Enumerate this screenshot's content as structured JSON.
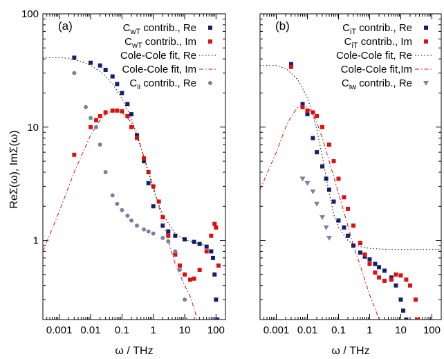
{
  "figure": {
    "ylabel": "ReΣ(ω), ImΣ(ω)",
    "colors": {
      "navy": "#14206e",
      "red": "#dd1111",
      "steel": "#7583a1",
      "fit": "#000000",
      "fitIm": "#cc1111"
    }
  },
  "chart_data": [
    {
      "type": "scatter",
      "panel_label": "(a)",
      "xlabel": "ω / THz",
      "ylabel": "ReΣ(ω), ImΣ(ω)",
      "xscale": "log",
      "yscale": "log",
      "xlim": [
        0.0003,
        200
      ],
      "ylim": [
        0.2,
        100
      ],
      "grid": false,
      "legend_position": "top-right",
      "xticks": [
        {
          "v": 0.001,
          "label": "0.001"
        },
        {
          "v": 0.01,
          "label": "0.01"
        },
        {
          "v": 0.1,
          "label": "0.1"
        },
        {
          "v": 1,
          "label": "1"
        },
        {
          "v": 10,
          "label": "10"
        },
        {
          "v": 100,
          "label": "100"
        }
      ],
      "yticks": [
        {
          "v": 1,
          "label": "1"
        },
        {
          "v": 10,
          "label": "10"
        },
        {
          "v": 100,
          "label": "100"
        }
      ],
      "legend": [
        {
          "base": "C",
          "sub": "wT",
          "rest": " contrib., Re",
          "marker": "square",
          "color": "#14206e"
        },
        {
          "base": "C",
          "sub": "wT",
          "rest": " contrib., Im",
          "marker": "square",
          "color": "#dd1111"
        },
        {
          "base": "Cole-Cole fit, Re",
          "sub": "",
          "rest": "",
          "marker": "dotted",
          "color": "#000000"
        },
        {
          "base": "Cole-Cole fit, Im",
          "sub": "",
          "rest": "",
          "marker": "dashdot",
          "color": "#cc1111"
        },
        {
          "base": "C",
          "sub": "ii",
          "rest": " contrib., Re",
          "marker": "circle",
          "color": "#7583a1"
        }
      ],
      "series": [
        {
          "name": "CwT contrib., Re",
          "marker": "square",
          "color": "#14206e",
          "x": [
            0.003,
            0.01,
            0.02,
            0.03,
            0.05,
            0.07,
            0.1,
            0.15,
            0.2,
            0.3,
            0.5,
            0.7,
            1,
            2,
            3,
            5,
            10,
            20,
            30,
            50,
            70,
            80,
            90,
            100,
            110
          ],
          "y": [
            41,
            37,
            35,
            32,
            28,
            24,
            20,
            16,
            13,
            8.5,
            5,
            3.2,
            2.0,
            1.35,
            1.2,
            1.1,
            1.02,
            0.97,
            0.93,
            0.88,
            0.8,
            0.7,
            0.5,
            0.3,
            0.2
          ]
        },
        {
          "name": "CwT contrib., Im",
          "marker": "square",
          "color": "#dd1111",
          "x": [
            0.003,
            0.01,
            0.015,
            0.02,
            0.03,
            0.05,
            0.07,
            0.1,
            0.15,
            0.2,
            0.3,
            0.5,
            0.7,
            1,
            1.5,
            2,
            3,
            5,
            7,
            10,
            15,
            20,
            30,
            50,
            70,
            90,
            100,
            120
          ],
          "y": [
            5.7,
            10,
            11.5,
            12.5,
            13.5,
            14,
            14,
            13.8,
            12.5,
            10,
            8,
            5.3,
            4,
            3,
            2.2,
            1.6,
            1.1,
            0.75,
            0.6,
            0.5,
            0.45,
            0.46,
            0.55,
            0.8,
            1.1,
            1.4,
            1.3,
            0.6
          ]
        },
        {
          "name": "Cole-Cole fit, Re",
          "marker": "dotted",
          "color": "#000000",
          "x": [
            0.0003,
            0.001,
            0.002,
            0.005,
            0.01,
            0.02,
            0.03,
            0.05,
            0.07,
            0.1,
            0.2,
            0.3,
            0.5,
            1,
            2,
            5,
            10,
            20,
            30,
            50
          ],
          "y": [
            41,
            41,
            40.5,
            38,
            35,
            31,
            28,
            24,
            21,
            18,
            12,
            8.5,
            5.4,
            2.8,
            1.7,
            1.15,
            1.02,
            0.96,
            0.93,
            0.9
          ]
        },
        {
          "name": "Cole-Cole fit, Im",
          "marker": "dashdot",
          "color": "#cc1111",
          "x": [
            0.0003,
            0.001,
            0.003,
            0.01,
            0.02,
            0.03,
            0.05,
            0.07,
            0.1,
            0.2,
            0.3,
            0.5,
            1,
            2,
            3,
            5,
            10,
            15,
            20,
            25
          ],
          "y": [
            0.8,
            1.8,
            4.0,
            8.5,
            11.5,
            13,
            14,
            14,
            13.5,
            11,
            8.8,
            5.5,
            3.0,
            1.5,
            1.0,
            0.62,
            0.4,
            0.32,
            0.25,
            0.2
          ]
        },
        {
          "name": "Cii contrib., Re",
          "marker": "circle",
          "color": "#7583a1",
          "x": [
            0.003,
            0.007,
            0.01,
            0.015,
            0.02,
            0.03,
            0.05,
            0.07,
            0.1,
            0.15,
            0.2,
            0.3,
            0.5,
            0.7,
            1,
            2,
            3,
            5,
            7,
            10,
            11
          ],
          "y": [
            30,
            15,
            12,
            10,
            7,
            4,
            2.5,
            2.1,
            1.85,
            1.65,
            1.5,
            1.35,
            1.25,
            1.2,
            1.15,
            1.05,
            0.98,
            0.8,
            0.55,
            0.3,
            0.2
          ]
        }
      ]
    },
    {
      "type": "scatter",
      "panel_label": "(b)",
      "xlabel": "ω / THz",
      "xscale": "log",
      "yscale": "log",
      "xlim": [
        0.0003,
        200
      ],
      "ylim": [
        0.2,
        100
      ],
      "grid": false,
      "legend_position": "top-right",
      "xticks": [
        {
          "v": 0.001,
          "label": "0.001"
        },
        {
          "v": 0.01,
          "label": "0.01"
        },
        {
          "v": 0.1,
          "label": "0.1"
        },
        {
          "v": 1,
          "label": "1"
        },
        {
          "v": 10,
          "label": "10"
        },
        {
          "v": 100,
          "label": "100"
        }
      ],
      "legend": [
        {
          "base": "C",
          "sub": "iT",
          "rest": " contrib., Re",
          "marker": "square",
          "color": "#14206e"
        },
        {
          "base": "C",
          "sub": "iT",
          "rest": " contrib., Im",
          "marker": "square",
          "color": "#dd1111"
        },
        {
          "base": "Cole-Cole fit, Re",
          "sub": "",
          "rest": "",
          "marker": "dotted",
          "color": "#000000"
        },
        {
          "base": "Cole-Cole fit,Im",
          "sub": "",
          "rest": "",
          "marker": "dashdot",
          "color": "#cc1111"
        },
        {
          "base": "C",
          "sub": "iw",
          "rest": " contrib., Re",
          "marker": "triangle",
          "color": "#7583a1"
        }
      ],
      "series": [
        {
          "name": "CiT contrib., Re",
          "marker": "square",
          "color": "#14206e",
          "x": [
            0.003,
            0.007,
            0.01,
            0.015,
            0.02,
            0.03,
            0.04,
            0.05,
            0.07,
            0.1,
            0.15,
            0.2,
            0.3,
            0.5,
            0.7,
            1,
            1.5,
            2,
            3,
            5,
            7,
            10,
            12,
            15
          ],
          "y": [
            36,
            16,
            13,
            8,
            6,
            4.5,
            3.5,
            2.8,
            2.2,
            1.5,
            1.3,
            1.1,
            0.9,
            0.78,
            0.72,
            0.68,
            0.62,
            0.58,
            0.54,
            0.47,
            0.4,
            0.3,
            0.24,
            0.2
          ]
        },
        {
          "name": "CiT contrib., Im",
          "marker": "square",
          "color": "#dd1111",
          "x": [
            0.003,
            0.007,
            0.01,
            0.015,
            0.02,
            0.03,
            0.05,
            0.07,
            0.1,
            0.15,
            0.2,
            0.3,
            0.5,
            0.7,
            1,
            1.5,
            2,
            3,
            5,
            7,
            10,
            15,
            20,
            30,
            35
          ],
          "y": [
            34,
            15,
            14,
            13.5,
            12.5,
            10,
            7,
            5,
            3.5,
            2.4,
            1.9,
            1.35,
            0.95,
            0.75,
            0.62,
            0.52,
            0.47,
            0.44,
            0.45,
            0.5,
            0.49,
            0.45,
            0.4,
            0.3,
            0.2
          ]
        },
        {
          "name": "Cole-Cole fit, Re",
          "marker": "dotted",
          "color": "#000000",
          "x": [
            0.0003,
            0.001,
            0.002,
            0.003,
            0.005,
            0.007,
            0.01,
            0.015,
            0.02,
            0.03,
            0.05,
            0.07,
            0.1,
            0.2,
            0.3,
            0.5,
            1,
            2,
            5,
            10,
            50,
            200
          ],
          "y": [
            35,
            35,
            33,
            30,
            26,
            22,
            18,
            13,
            9.5,
            5.5,
            2.6,
            1.7,
            1.3,
            1.0,
            0.92,
            0.88,
            0.85,
            0.84,
            0.83,
            0.83,
            0.83,
            0.83
          ]
        },
        {
          "name": "Cole-Cole fit,Im",
          "marker": "dashdot",
          "color": "#cc1111",
          "x": [
            0.0003,
            0.001,
            0.002,
            0.003,
            0.005,
            0.007,
            0.01,
            0.015,
            0.02,
            0.03,
            0.05,
            0.1,
            0.2,
            0.3,
            0.5,
            1,
            1.5,
            2
          ],
          "y": [
            2.8,
            6,
            10,
            12.5,
            15,
            15.5,
            15,
            13,
            11,
            8,
            5,
            2.6,
            1.35,
            0.9,
            0.6,
            0.33,
            0.25,
            0.2
          ]
        },
        {
          "name": "Ciw contrib., Re",
          "marker": "triangle",
          "color": "#7583a1",
          "x": [
            0.007,
            0.01,
            0.015,
            0.02,
            0.03,
            0.04,
            0.05
          ],
          "y": [
            3.5,
            3.2,
            2.7,
            2.1,
            1.6,
            1.3,
            1.05
          ]
        }
      ]
    }
  ]
}
